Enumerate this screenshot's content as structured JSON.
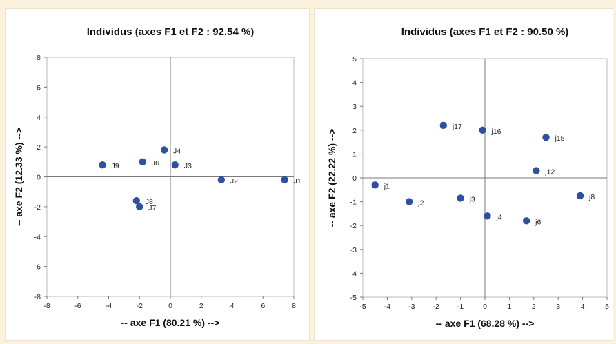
{
  "chart_data": [
    {
      "type": "scatter",
      "title": "Individus (axes F1 et F2 : 92.54 %)",
      "xlabel": "-- axe F1 (80.21 %) -->",
      "ylabel": "-- axe F2 (12.33 %) -->",
      "xlim": [
        -8,
        8
      ],
      "ylim": [
        -8,
        8
      ],
      "xticks": [
        "-8",
        "-6",
        "-4",
        "-2",
        "0",
        "2",
        "4",
        "6",
        "8"
      ],
      "yticks": [
        "8",
        "6",
        "4",
        "2",
        "0",
        "-2",
        "-4",
        "-6",
        "-8"
      ],
      "grid": false,
      "color": "#2f4fa2",
      "points": [
        {
          "label": "J1",
          "x": 7.4,
          "y": -0.2
        },
        {
          "label": "J2",
          "x": 3.3,
          "y": -0.2
        },
        {
          "label": "J3",
          "x": 0.3,
          "y": 0.8
        },
        {
          "label": "J4",
          "x": -0.4,
          "y": 1.8
        },
        {
          "label": "J6",
          "x": -1.8,
          "y": 1.0
        },
        {
          "label": "J9",
          "x": -4.4,
          "y": 0.8
        },
        {
          "label": "J8",
          "x": -2.2,
          "y": -1.6
        },
        {
          "label": "J7",
          "x": -2.0,
          "y": -2.0
        }
      ]
    },
    {
      "type": "scatter",
      "title": "Individus (axes F1 et F2 : 90.50 %)",
      "xlabel": "-- axe F1 (68.28 %) -->",
      "ylabel": "-- axe F2 (22.22 %) -->",
      "xlim": [
        -5,
        5
      ],
      "ylim": [
        -5,
        5
      ],
      "xticks": [
        "-5",
        "-4",
        "-3",
        "-2",
        "-1",
        "0",
        "1",
        "2",
        "3",
        "4",
        "5"
      ],
      "yticks": [
        "5",
        "4",
        "3",
        "2",
        "1",
        "0",
        "-1",
        "-2",
        "-3",
        "-4",
        "-5"
      ],
      "grid": false,
      "color": "#2f4fa2",
      "points": [
        {
          "label": "j1",
          "x": -4.5,
          "y": -0.3
        },
        {
          "label": "j2",
          "x": -3.1,
          "y": -1.0
        },
        {
          "label": "j3",
          "x": -1.0,
          "y": -0.85
        },
        {
          "label": "j4",
          "x": 0.1,
          "y": -1.6
        },
        {
          "label": "j6",
          "x": 1.7,
          "y": -1.8
        },
        {
          "label": "j8",
          "x": 3.9,
          "y": -0.75
        },
        {
          "label": "j12",
          "x": 2.1,
          "y": 0.3
        },
        {
          "label": "j15",
          "x": 2.5,
          "y": 1.7
        },
        {
          "label": "j16",
          "x": -0.1,
          "y": 2.0
        },
        {
          "label": "j17",
          "x": -1.7,
          "y": 2.2
        }
      ]
    }
  ]
}
